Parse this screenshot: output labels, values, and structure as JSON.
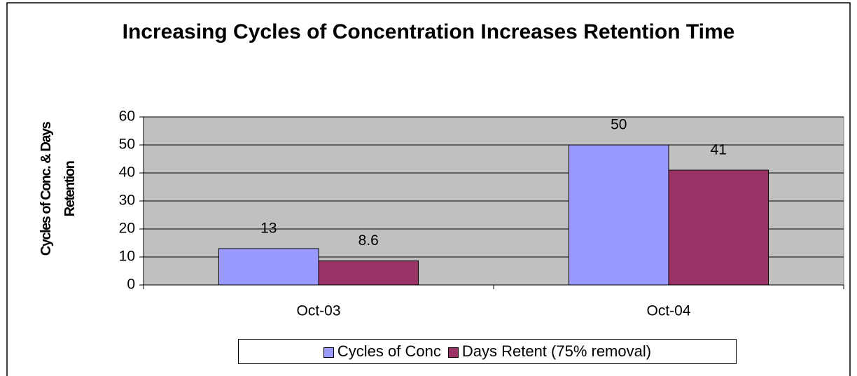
{
  "chart_data": {
    "type": "bar",
    "title": "Increasing Cycles of Concentration Increases Retention Time",
    "y_label": "Cycles of Conc. & Days Retention",
    "categories": [
      "Oct-03",
      "Oct-04"
    ],
    "series": [
      {
        "name": "Cycles of Conc",
        "color": "#9999ff",
        "values": [
          13,
          50
        ]
      },
      {
        "name": "Days Retent (75% removal)",
        "color": "#993366",
        "values": [
          8.6,
          41
        ]
      }
    ],
    "ylim": [
      0,
      60
    ],
    "yticks": [
      0,
      10,
      20,
      30,
      40,
      50,
      60
    ],
    "grid": true,
    "legend": "bottom"
  }
}
